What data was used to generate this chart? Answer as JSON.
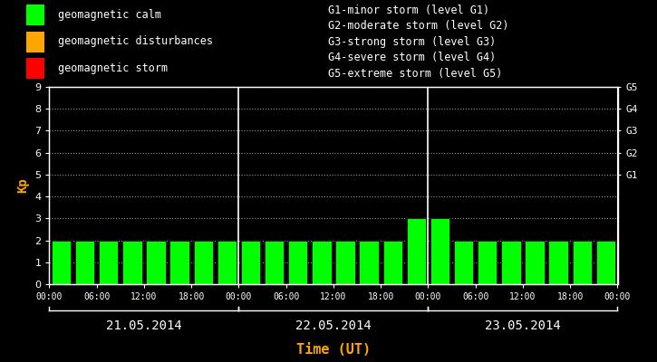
{
  "bg_color": "#000000",
  "bar_color": "#00ff00",
  "bar_edge_color": "#000000",
  "axis_text_color": "#ffffff",
  "xlabel_color": "#ffa500",
  "ylabel_color": "#ffa500",
  "grid_color": "#ffffff",
  "ylabel": "Kp",
  "xlabel": "Time (UT)",
  "ylim": [
    0,
    9
  ],
  "yticks": [
    0,
    1,
    2,
    3,
    4,
    5,
    6,
    7,
    8,
    9
  ],
  "days": [
    "21.05.2014",
    "22.05.2014",
    "23.05.2014"
  ],
  "kp_values": [
    2,
    2,
    2,
    2,
    2,
    2,
    2,
    2,
    2,
    2,
    2,
    2,
    2,
    2,
    2,
    3,
    3,
    2,
    2,
    2,
    2,
    2,
    2,
    2
  ],
  "bar_colors_per_bar": [
    "#00ff00",
    "#00ff00",
    "#00ff00",
    "#00ff00",
    "#00ff00",
    "#00ff00",
    "#00ff00",
    "#00ff00",
    "#00ff00",
    "#00ff00",
    "#00ff00",
    "#00ff00",
    "#00ff00",
    "#00ff00",
    "#00ff00",
    "#00ff00",
    "#00ff00",
    "#00ff00",
    "#00ff00",
    "#00ff00",
    "#00ff00",
    "#00ff00",
    "#00ff00",
    "#00ff00"
  ],
  "legend_items": [
    {
      "label": "geomagnetic calm",
      "color": "#00ff00"
    },
    {
      "label": "geomagnetic disturbances",
      "color": "#ffa500"
    },
    {
      "label": "geomagnetic storm",
      "color": "#ff0000"
    }
  ],
  "right_labels": [
    {
      "y": 5,
      "text": "G1"
    },
    {
      "y": 6,
      "text": "G2"
    },
    {
      "y": 7,
      "text": "G3"
    },
    {
      "y": 8,
      "text": "G4"
    },
    {
      "y": 9,
      "text": "G5"
    }
  ],
  "storm_legend": [
    "G1-minor storm (level G1)",
    "G2-moderate storm (level G2)",
    "G3-strong storm (level G3)",
    "G4-severe storm (level G4)",
    "G5-extreme storm (level G5)"
  ],
  "font_family": "monospace",
  "bar_width": 0.82,
  "figsize": [
    7.25,
    4.0
  ],
  "dpi": 100
}
